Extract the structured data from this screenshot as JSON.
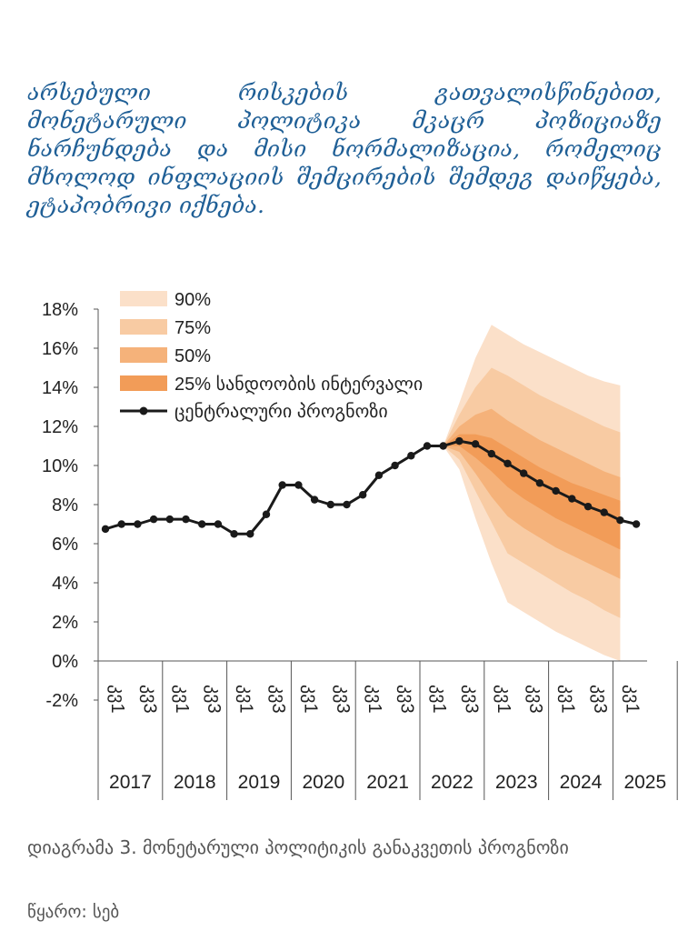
{
  "intro_text": "არსებული რისკების გათვალისწინებით, მონეტარული პოლიტიკა მკაცრ პოზიციაზე ნარჩუნდება და მისი ნორმალიზაცია, რომელიც მხოლოდ ინფლაციის შემცირების შემდეგ დაიწყება, ეტაპობრივი იქნება.",
  "caption": "დიაგრამა 3. მონეტარული პოლიტიკის განაკვეთის პროგნოზი",
  "source": "წყარო: სებ",
  "colors": {
    "band90": "#fbe0c9",
    "band75": "#f8cba3",
    "band50": "#f5b27a",
    "band25": "#f29c58",
    "line": "#1a1a1a",
    "axis": "#555555",
    "text_blue": "#1f5f96"
  },
  "chart_data": {
    "type": "line",
    "ylim": [
      -2,
      18
    ],
    "yticks": [
      -2,
      0,
      2,
      4,
      6,
      8,
      10,
      12,
      14,
      16,
      18
    ],
    "ytick_labels": [
      "-2%",
      "0%",
      "2%",
      "4%",
      "6%",
      "8%",
      "10%",
      "12%",
      "14%",
      "16%",
      "18%"
    ],
    "quarter_labels": [
      "კვ1",
      "კვ3"
    ],
    "years": [
      "2017",
      "2018",
      "2019",
      "2020",
      "2021",
      "2022",
      "2023",
      "2024",
      "2025"
    ],
    "quarters_per_year": 4,
    "legend": [
      "90%",
      "75%",
      "50%",
      "25% სანდოობის ინტერვალი",
      "ცენტრალური პროგნოზი"
    ],
    "central_forecast": [
      6.75,
      7.0,
      7.0,
      7.25,
      7.25,
      7.25,
      7.0,
      7.0,
      6.5,
      6.5,
      7.5,
      9.0,
      9.0,
      8.25,
      8.0,
      8.0,
      8.5,
      9.5,
      10.0,
      10.5,
      11.0,
      11.0,
      11.25,
      11.1,
      10.6,
      10.1,
      9.6,
      9.1,
      8.7,
      8.3,
      7.9,
      7.6,
      7.2,
      7.0
    ],
    "forecast_start_index": 21,
    "band90": {
      "upper": [
        11.0,
        13.2,
        15.5,
        17.2,
        16.7,
        16.2,
        15.8,
        15.4,
        15.0,
        14.6,
        14.3,
        14.1
      ],
      "lower": [
        11.0,
        9.8,
        7.3,
        5.0,
        3.0,
        2.5,
        2.0,
        1.5,
        1.1,
        0.7,
        0.3,
        0.0
      ]
    },
    "band75": {
      "upper": [
        11.0,
        12.6,
        14.0,
        15.0,
        14.6,
        14.1,
        13.6,
        13.2,
        12.8,
        12.4,
        12.0,
        11.7
      ],
      "lower": [
        11.0,
        10.3,
        8.7,
        7.1,
        5.5,
        5.0,
        4.5,
        4.0,
        3.5,
        3.1,
        2.6,
        2.2
      ]
    },
    "band50": {
      "upper": [
        11.0,
        12.0,
        12.6,
        12.9,
        12.3,
        11.8,
        11.3,
        10.9,
        10.5,
        10.1,
        9.7,
        9.4
      ],
      "lower": [
        11.0,
        10.7,
        9.6,
        8.4,
        7.4,
        6.8,
        6.3,
        5.8,
        5.4,
        5.0,
        4.6,
        4.2
      ]
    },
    "band25": {
      "upper": [
        11.0,
        11.6,
        11.6,
        11.4,
        10.9,
        10.4,
        9.9,
        9.5,
        9.1,
        8.8,
        8.5,
        8.2
      ],
      "lower": [
        11.0,
        11.0,
        10.4,
        9.7,
        8.9,
        8.3,
        7.8,
        7.3,
        6.9,
        6.5,
        6.1,
        5.7
      ]
    }
  }
}
